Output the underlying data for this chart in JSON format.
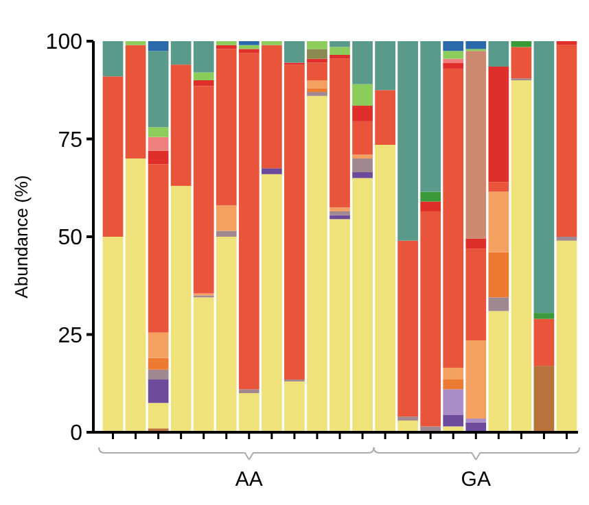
{
  "chart_data": {
    "type": "bar",
    "stacked": true,
    "ylabel": "Abundance (%)",
    "ylim": [
      0,
      100
    ],
    "yticks": [
      0,
      25,
      50,
      75,
      100
    ],
    "grid": false,
    "categories": [
      null,
      null,
      null,
      null,
      null,
      null,
      "AA",
      null,
      null,
      null,
      null,
      null,
      null,
      null,
      null,
      null,
      "GA",
      null,
      null,
      null,
      null
    ],
    "series": [
      {
        "color": "#b8733a",
        "values": [
          0,
          0,
          1,
          0,
          0,
          0,
          0,
          0,
          0,
          0,
          0,
          0,
          0,
          0,
          0,
          0,
          0,
          0,
          0,
          17,
          0
        ]
      },
      {
        "color": "#efe27a",
        "values": [
          50,
          70,
          6.5,
          63,
          34.5,
          50,
          10,
          66,
          13,
          86,
          54.5,
          65,
          73.5,
          3,
          0,
          1.5,
          0,
          31,
          90,
          0,
          49
        ]
      },
      {
        "color": "#6e4a9a",
        "values": [
          0,
          0,
          6,
          0,
          0,
          0,
          0,
          1.5,
          0,
          0,
          1,
          1.5,
          0,
          0,
          0,
          3,
          2.5,
          0,
          0,
          0,
          0
        ]
      },
      {
        "color": "#a98cc8",
        "values": [
          0,
          0,
          0,
          0,
          0,
          0,
          0,
          0,
          0,
          0,
          0,
          0,
          0,
          0,
          0,
          6.5,
          1,
          0,
          0,
          0,
          0
        ]
      },
      {
        "color": "#a08890",
        "values": [
          0,
          0,
          2.5,
          0,
          0.5,
          1.5,
          1,
          0,
          0.5,
          1,
          1,
          3.5,
          0,
          1,
          1.5,
          0,
          0,
          3.5,
          0.5,
          0,
          1
        ]
      },
      {
        "color": "#ec7a30",
        "values": [
          0,
          0,
          3,
          0,
          0,
          0,
          0,
          0,
          0,
          1,
          0,
          0,
          0,
          0,
          0,
          2.5,
          0,
          11.5,
          0,
          0,
          0
        ]
      },
      {
        "color": "#f4a060",
        "values": [
          0,
          0,
          6.5,
          0,
          0.5,
          6.5,
          0,
          0,
          0,
          2,
          1,
          1,
          0,
          0,
          0,
          3,
          20,
          15.5,
          0,
          0,
          0
        ]
      },
      {
        "color": "#e8553a",
        "values": [
          41,
          29,
          43,
          31,
          53,
          40,
          86,
          31.5,
          80.5,
          4.5,
          38,
          8.5,
          14,
          45,
          55,
          76.5,
          23.5,
          2.5,
          8,
          12,
          49
        ]
      },
      {
        "color": "#e02f2a",
        "values": [
          0,
          0,
          3.5,
          0,
          1.5,
          1,
          1,
          0,
          0.5,
          1,
          1,
          4,
          0,
          0,
          2.5,
          1.5,
          2.5,
          29.5,
          0,
          0,
          1
        ]
      },
      {
        "color": "#f08080",
        "values": [
          0,
          0,
          3.5,
          0,
          0,
          0,
          0,
          0,
          0,
          0,
          0,
          0,
          0,
          0,
          0,
          1,
          0,
          0,
          0,
          0,
          0
        ]
      },
      {
        "color": "#cc8a70",
        "values": [
          0,
          0,
          0,
          0,
          0,
          0,
          0,
          0,
          0,
          0,
          0,
          0,
          0,
          0,
          0,
          0,
          48,
          0,
          0,
          0,
          0
        ]
      },
      {
        "color": "#8a8a50",
        "values": [
          0,
          0,
          0,
          0,
          0,
          0,
          0,
          0,
          0,
          2.5,
          0,
          0,
          0,
          0,
          0,
          0,
          0,
          0,
          0,
          0,
          0
        ]
      },
      {
        "color": "#8ccc5a",
        "values": [
          0,
          1,
          2.5,
          0,
          2,
          1,
          1,
          1,
          0,
          2,
          2,
          5.5,
          0,
          0,
          0,
          2,
          0.5,
          0,
          0,
          0,
          0
        ]
      },
      {
        "color": "#3a9a3a",
        "values": [
          0,
          0,
          0,
          0,
          0,
          0,
          0,
          0,
          0,
          0,
          0,
          0,
          0,
          0,
          2.5,
          0,
          0,
          0,
          1.5,
          1.5,
          0
        ]
      },
      {
        "color": "#5a9a8a",
        "values": [
          9,
          0,
          19.5,
          6,
          8,
          0,
          0,
          0,
          5.5,
          0,
          1.5,
          11,
          12.5,
          51,
          38.5,
          0,
          0,
          6.5,
          0,
          69.5,
          0
        ]
      },
      {
        "color": "#2a6aaa",
        "values": [
          0,
          0,
          2.5,
          0,
          0,
          0,
          1,
          0,
          0,
          0,
          0,
          0,
          0,
          0,
          0,
          2.5,
          2,
          0,
          0,
          0,
          0
        ]
      }
    ]
  }
}
